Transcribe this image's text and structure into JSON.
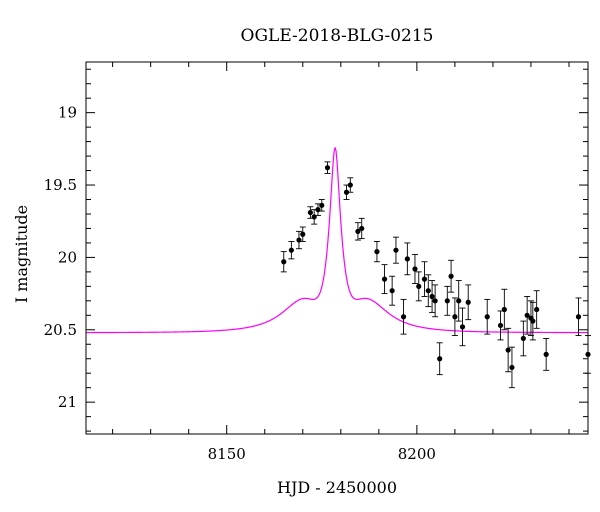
{
  "chart_data": {
    "type": "scatter",
    "title": "OGLE-2018-BLG-0215",
    "xlabel": "HJD - 2450000",
    "ylabel": "I magnitude",
    "xlim": [
      8113,
      8245
    ],
    "ylim": [
      21.22,
      18.65
    ],
    "y_inverted": true,
    "x_ticks": [
      8150,
      8200
    ],
    "x_tick_labels": [
      "8150",
      "8200"
    ],
    "y_ticks": [
      19,
      19.5,
      20,
      20.5,
      21
    ],
    "y_tick_labels": [
      "19",
      "19.5",
      "20",
      "20.5",
      "21"
    ],
    "grid": false,
    "legend": "none",
    "colors": {
      "points": "#000000",
      "model": "#ff00ff",
      "axes": "#000000"
    },
    "model_curve": {
      "description_shown": "single-lens fit curve",
      "peak_x": 8178.5,
      "peak_mag": 19.24,
      "baseline_mag": 20.52,
      "tE": 9.5,
      "u0": 0.113
    },
    "series": [
      {
        "x": [
          8165.0,
          8167.0,
          8169.0,
          8170.0,
          8172.0,
          8173.0,
          8174.0,
          8175.0,
          8176.5,
          8181.5,
          8182.5,
          8184.5,
          8185.5,
          8189.5,
          8191.5,
          8193.5,
          8194.5,
          8196.5,
          8197.5,
          8199.5,
          8200.5,
          8202.0,
          8203.0,
          8204.0,
          8204.8,
          8206.0,
          8208.0,
          8209.0,
          8210.0,
          8211.0,
          8212.0,
          8213.5,
          8218.5,
          8222.0,
          8223.0,
          8224.0,
          8225.0,
          8228.0,
          8229.0,
          8230.0,
          8230.5,
          8231.5,
          8234.0,
          8242.5,
          8245.0
        ],
        "y": [
          20.03,
          19.95,
          19.88,
          19.84,
          19.69,
          19.72,
          19.67,
          19.64,
          19.38,
          19.55,
          19.5,
          19.82,
          19.8,
          19.96,
          20.15,
          20.23,
          19.95,
          20.41,
          20.01,
          20.08,
          20.2,
          20.15,
          20.23,
          20.27,
          20.3,
          20.7,
          20.3,
          20.13,
          20.41,
          20.3,
          20.48,
          20.31,
          20.41,
          20.47,
          20.36,
          20.64,
          20.76,
          20.56,
          20.4,
          20.42,
          20.44,
          20.36,
          20.67,
          20.41,
          20.67
        ],
        "err": [
          0.07,
          0.06,
          0.06,
          0.05,
          0.04,
          0.05,
          0.04,
          0.04,
          0.04,
          0.05,
          0.05,
          0.06,
          0.07,
          0.07,
          0.1,
          0.1,
          0.09,
          0.12,
          0.11,
          0.1,
          0.1,
          0.12,
          0.11,
          0.11,
          0.11,
          0.11,
          0.1,
          0.11,
          0.13,
          0.14,
          0.13,
          0.12,
          0.12,
          0.1,
          0.14,
          0.15,
          0.14,
          0.12,
          0.13,
          0.12,
          0.13,
          0.13,
          0.11,
          0.13,
          0.13
        ]
      }
    ]
  }
}
